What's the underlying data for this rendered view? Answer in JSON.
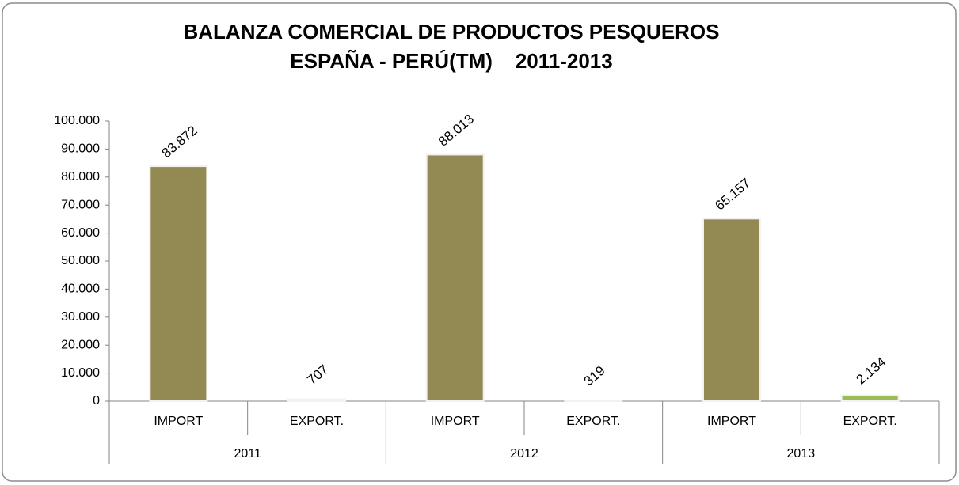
{
  "chart_data": {
    "type": "bar",
    "title": [
      "BALANZA COMERCIAL DE PRODUCTOS PESQUEROS",
      "ESPAÑA - PERÚ(TM)    2011-2013"
    ],
    "categories": [
      "IMPORT",
      "EXPORT.",
      "IMPORT",
      "EXPORT.",
      "IMPORT",
      "EXPORT."
    ],
    "groups": [
      "2011",
      "2012",
      "2013"
    ],
    "values": [
      83872,
      707,
      88013,
      319,
      65157,
      2134
    ],
    "value_labels": [
      "83.872",
      "707",
      "88.013",
      "319",
      "65.157",
      "2.134"
    ],
    "colors": [
      "#938953",
      "#9bbb59",
      "#938953",
      "#9bbb59",
      "#938953",
      "#9bbb59"
    ],
    "ylim": [
      0,
      100000
    ],
    "yticks": [
      0,
      {
        "value": 10000,
        "label": "10.000"
      },
      {
        "value": 20000,
        "label": "20.000"
      },
      {
        "value": 30000,
        "label": "30.000"
      },
      {
        "value": 40000,
        "label": "40.000"
      },
      {
        "value": 50000,
        "label": "50.000"
      },
      {
        "value": 60000,
        "label": "60.000"
      },
      {
        "value": 70000,
        "label": "70.000"
      },
      {
        "value": 80000,
        "label": "80.000"
      },
      {
        "value": 90000,
        "label": "90.000"
      },
      {
        "value": 100000,
        "label": "100.000"
      }
    ]
  }
}
